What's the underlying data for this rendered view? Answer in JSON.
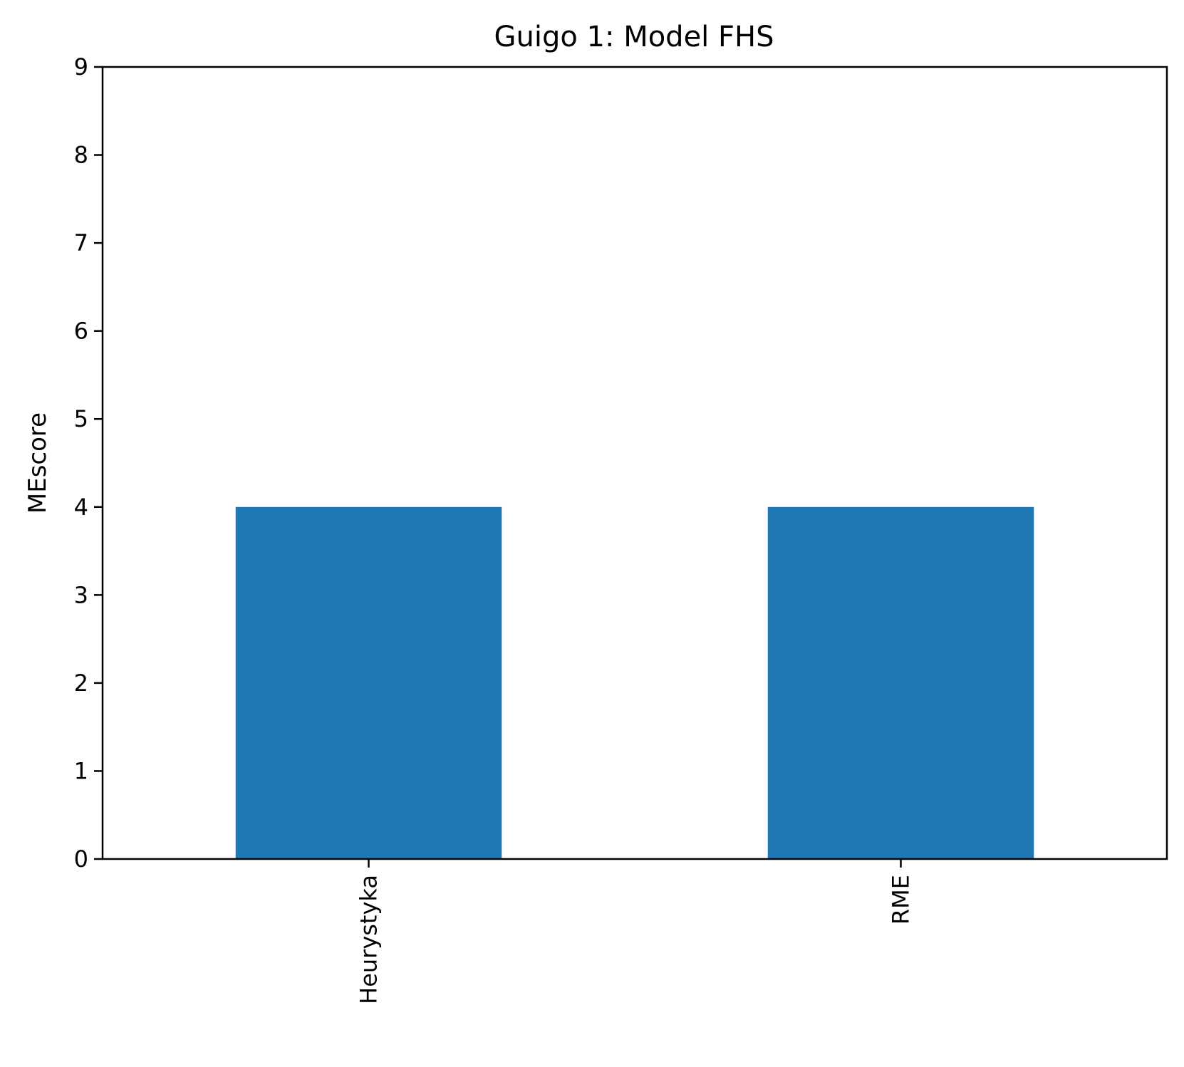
{
  "chart_data": {
    "type": "bar",
    "title": "Guigo 1: Model FHS",
    "xlabel": "",
    "ylabel": "MEscore",
    "categories": [
      "Heurystyka",
      "RME"
    ],
    "values": [
      4,
      4
    ],
    "ylim": [
      0,
      9
    ],
    "yticks": [
      "0",
      "1",
      "2",
      "3",
      "4",
      "5",
      "6",
      "7",
      "8",
      "9"
    ],
    "x_tick_rotation": "vertical",
    "grid": false,
    "legend": "none",
    "bar_color": "#1f77b4"
  }
}
